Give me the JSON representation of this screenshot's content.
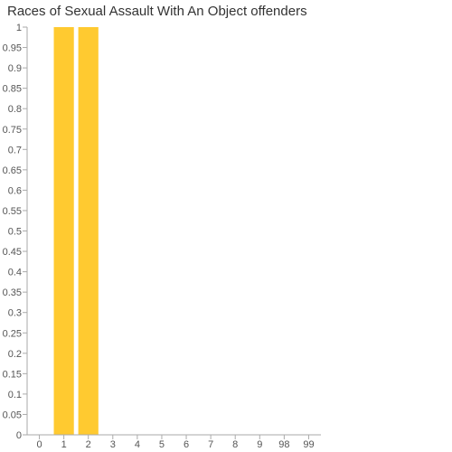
{
  "chart_data": {
    "type": "bar",
    "title": "Races of Sexual Assault With An Object offenders",
    "xlabel": "",
    "ylabel": "",
    "categories": [
      "0",
      "1",
      "2",
      "3",
      "4",
      "5",
      "6",
      "7",
      "8",
      "9",
      "98",
      "99"
    ],
    "values": [
      0,
      1,
      1,
      0,
      0,
      0,
      0,
      0,
      0,
      0,
      0,
      0
    ],
    "ylim": [
      0,
      1
    ],
    "y_ticks": [
      "0",
      "0.05",
      "0.1",
      "0.15",
      "0.2",
      "0.25",
      "0.3",
      "0.35",
      "0.4",
      "0.45",
      "0.5",
      "0.55",
      "0.6",
      "0.65",
      "0.7",
      "0.75",
      "0.8",
      "0.85",
      "0.9",
      "0.95",
      "1"
    ],
    "grid": false,
    "bar_color": "#ffca30",
    "axis_color": "#aaaaaa"
  }
}
